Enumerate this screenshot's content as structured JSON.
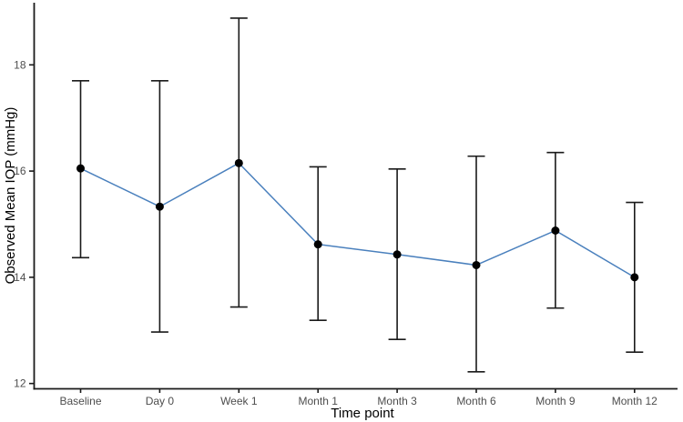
{
  "figure": {
    "background": "#ffffff"
  },
  "chart_data": {
    "type": "line",
    "title": "",
    "xlabel": "Time point",
    "ylabel": "Observed Mean IOP (mmHg)",
    "categories": [
      "Baseline",
      "Day 0",
      "Week 1",
      "Month 1",
      "Month 3",
      "Month 6",
      "Month 9",
      "Month 12"
    ],
    "series": [
      {
        "name": "observed-mean-iop",
        "values": [
          16.05,
          15.33,
          16.15,
          14.62,
          14.43,
          14.23,
          14.88,
          14.0
        ],
        "error_upper": [
          17.7,
          17.7,
          18.88,
          16.08,
          16.04,
          16.28,
          16.35,
          15.41
        ],
        "error_lower": [
          14.37,
          12.97,
          13.44,
          13.19,
          12.83,
          12.22,
          13.42,
          12.59
        ]
      }
    ],
    "ylim": [
      11.9,
      19.17
    ],
    "yticks": [
      12,
      14,
      16,
      18
    ],
    "grid": false,
    "legend": false,
    "colors": {
      "line": "#4A80BD",
      "point": "#000000",
      "error_bar": "#1A1A1A",
      "axis": "#1A1A1A",
      "tick_label": "#4D4D4D",
      "axis_title": "#000000"
    }
  }
}
